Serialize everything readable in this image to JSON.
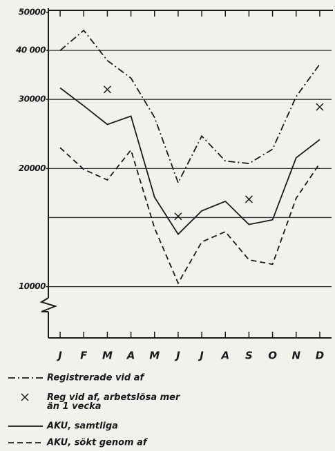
{
  "chart_data": {
    "type": "line",
    "log_scale": true,
    "categories": [
      "J",
      "F",
      "M",
      "A",
      "M",
      "J",
      "J",
      "A",
      "S",
      "O",
      "N",
      "D"
    ],
    "series": [
      {
        "name": "Registrerade vid af",
        "color": "#1a1a1a",
        "style": "dashdot",
        "values": [
          40000,
          45000,
          37700,
          34000,
          27000,
          18400,
          24200,
          20900,
          20600,
          22400,
          30500,
          36900
        ]
      },
      {
        "name": "Reg vid af, arbetslösa mer\nän 1 vecka",
        "color": "#1a1a1a",
        "style": "marker",
        "values": [
          null,
          null,
          31800,
          null,
          null,
          15100,
          null,
          null,
          16700,
          null,
          null,
          28700
        ]
      },
      {
        "name": "AKU, samtliga",
        "color": "#1a1a1a",
        "style": "solid",
        "values": [
          32100,
          28900,
          25900,
          27200,
          16900,
          13600,
          15600,
          16500,
          14400,
          14800,
          21300,
          23700
        ]
      },
      {
        "name": "AKU, sökt genom af",
        "color": "#1a1a1a",
        "style": "dashed",
        "values": [
          22600,
          19900,
          18700,
          22300,
          14100,
          10200,
          13000,
          13800,
          11700,
          11400,
          16800,
          20600
        ]
      }
    ],
    "ylim": [
      7400,
      50000
    ],
    "yticks": [
      10000,
      20000,
      30000,
      {
        "value": 40000,
        "label": "40 000"
      },
      50000
    ],
    "gridlines": [
      10000,
      15000,
      20000,
      30000,
      40000
    ],
    "grid": true
  }
}
